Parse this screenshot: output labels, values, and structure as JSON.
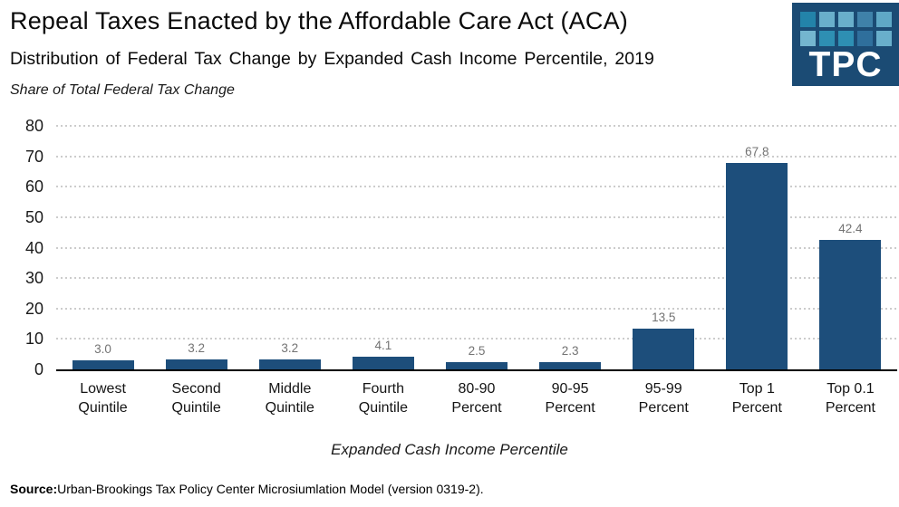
{
  "header": {
    "title": "Repeal Taxes Enacted by the Affordable Care Act (ACA)",
    "subtitle": "Distribution of Federal Tax Change by Expanded Cash Income Percentile, 2019"
  },
  "logo": {
    "text": "TPC",
    "bg_color": "#1B4B74",
    "square_colors": [
      "#2383A9",
      "#69AFCB",
      "#69AFCB",
      "#3F81A9",
      "#5FA8C6",
      "#74B6CF",
      "#2E8FB3",
      "#2E8FB3",
      "#2F6F9C",
      "#69AFCB"
    ]
  },
  "chart_data": {
    "type": "bar",
    "title": "Repeal Taxes Enacted by the Affordable Care Act (ACA)",
    "subtitle": "Distribution of Federal Tax Change by Expanded Cash Income Percentile, 2019",
    "ylabel": "Share of Total Federal Tax Change",
    "xlabel": "Expanded Cash Income Percentile",
    "categories": [
      "Lowest Quintile",
      "Second Quintile",
      "Middle Quintile",
      "Fourth Quintile",
      "80-90 Percent",
      "90-95 Percent",
      "95-99 Percent",
      "Top 1 Percent",
      "Top 0.1 Percent"
    ],
    "category_lines": [
      [
        "Lowest",
        "Quintile"
      ],
      [
        "Second",
        "Quintile"
      ],
      [
        "Middle",
        "Quintile"
      ],
      [
        "Fourth",
        "Quintile"
      ],
      [
        "80-90",
        "Percent"
      ],
      [
        "90-95",
        "Percent"
      ],
      [
        "95-99",
        "Percent"
      ],
      [
        "Top 1",
        "Percent"
      ],
      [
        "Top 0.1",
        "Percent"
      ]
    ],
    "values": [
      3.0,
      3.2,
      3.2,
      4.1,
      2.5,
      2.3,
      13.5,
      67.8,
      42.4
    ],
    "value_labels": [
      "3.0",
      "3.2",
      "3.2",
      "4.1",
      "2.5",
      "2.3",
      "13.5",
      "67.8",
      "42.4"
    ],
    "ylim": [
      0,
      80
    ],
    "yticks": [
      0,
      10,
      20,
      30,
      40,
      50,
      60,
      70,
      80
    ],
    "grid": "horizontal-dotted",
    "legend": "none",
    "bar_color": "#1D4E7B",
    "grid_color": "#CCCCCC",
    "axis_line_color": "#000000",
    "value_label_color": "#737373"
  },
  "footer": {
    "source_label": "Source:",
    "source_text": "Urban-Brookings Tax Policy Center Microsiumlation Model (version 0319-2)."
  }
}
